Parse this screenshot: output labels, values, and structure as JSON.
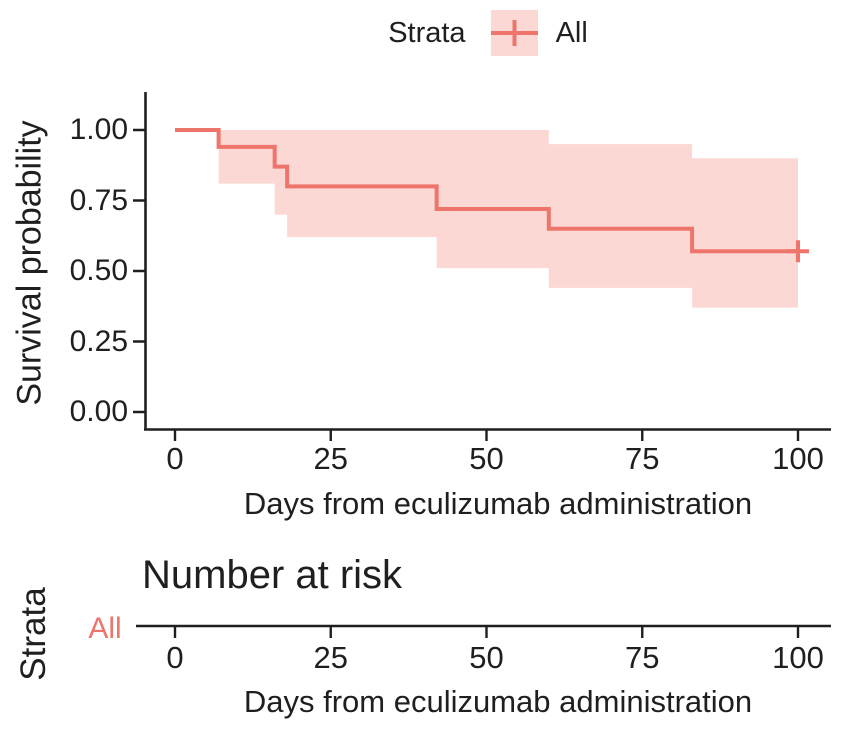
{
  "figure": {
    "background": "#ffffff",
    "accent_color": "#ee756b",
    "band_color": "#fbd8d4",
    "axis_color": "#1f1f1f"
  },
  "legend": {
    "title": "Strata",
    "entries": [
      {
        "label": "All",
        "key_icon": "censor-plus-icon",
        "key_color": "#ee756b",
        "key_bg": "#fbd8d4"
      }
    ]
  },
  "main_plot": {
    "ylabel": "Survival probability",
    "xlabel": "Days from eculizumab administration",
    "yticks": [
      {
        "label": "1.00",
        "value": 1.0
      },
      {
        "label": "0.75",
        "value": 0.75
      },
      {
        "label": "0.50",
        "value": 0.5
      },
      {
        "label": "0.25",
        "value": 0.25
      },
      {
        "label": "0.00",
        "value": 0.0
      }
    ],
    "xticks": [
      {
        "label": "0",
        "value": 0
      },
      {
        "label": "25",
        "value": 25
      },
      {
        "label": "50",
        "value": 50
      },
      {
        "label": "75",
        "value": 75
      },
      {
        "label": "100",
        "value": 100
      }
    ]
  },
  "risk_table": {
    "axis_label": "Strata",
    "title": "Number at risk",
    "rows": [
      {
        "label": "All"
      }
    ],
    "xticks": [
      {
        "label": "0",
        "value": 0
      },
      {
        "label": "25",
        "value": 25
      },
      {
        "label": "50",
        "value": 50
      },
      {
        "label": "75",
        "value": 75
      },
      {
        "label": "100",
        "value": 100
      }
    ],
    "xlabel": "Days from eculizumab administration"
  },
  "chart_data": {
    "type": "line",
    "subtype": "kaplan-meier-step",
    "title": "",
    "xlabel": "Days from eculizumab administration",
    "ylabel": "Survival probability",
    "xlim": [
      0,
      105
    ],
    "ylim": [
      0,
      1.06
    ],
    "xticks": [
      0,
      25,
      50,
      75,
      100
    ],
    "yticks": [
      0,
      0.25,
      0.5,
      0.75,
      1.0
    ],
    "grid": false,
    "legend_position": "top",
    "series": [
      {
        "name": "All",
        "color": "#ee756b",
        "ci_color": "#fbd8d4",
        "survival_steps": [
          {
            "time": 0,
            "survival": 1.0
          },
          {
            "time": 7,
            "survival": 0.94
          },
          {
            "time": 16,
            "survival": 0.87
          },
          {
            "time": 18,
            "survival": 0.8
          },
          {
            "time": 42,
            "survival": 0.72
          },
          {
            "time": 60,
            "survival": 0.65
          },
          {
            "time": 83,
            "survival": 0.57
          },
          {
            "time": 100,
            "survival": 0.57,
            "censored": true
          }
        ],
        "ci_intervals": [
          {
            "t0": 7,
            "t1": 16,
            "upper": 1.0,
            "lower": 0.81
          },
          {
            "t0": 16,
            "t1": 18,
            "upper": 1.0,
            "lower": 0.7
          },
          {
            "t0": 18,
            "t1": 42,
            "upper": 1.0,
            "lower": 0.62
          },
          {
            "t0": 42,
            "t1": 60,
            "upper": 1.0,
            "lower": 0.51
          },
          {
            "t0": 60,
            "t1": 83,
            "upper": 0.95,
            "lower": 0.44
          },
          {
            "t0": 83,
            "t1": 100,
            "upper": 0.9,
            "lower": 0.37
          }
        ]
      }
    ]
  }
}
